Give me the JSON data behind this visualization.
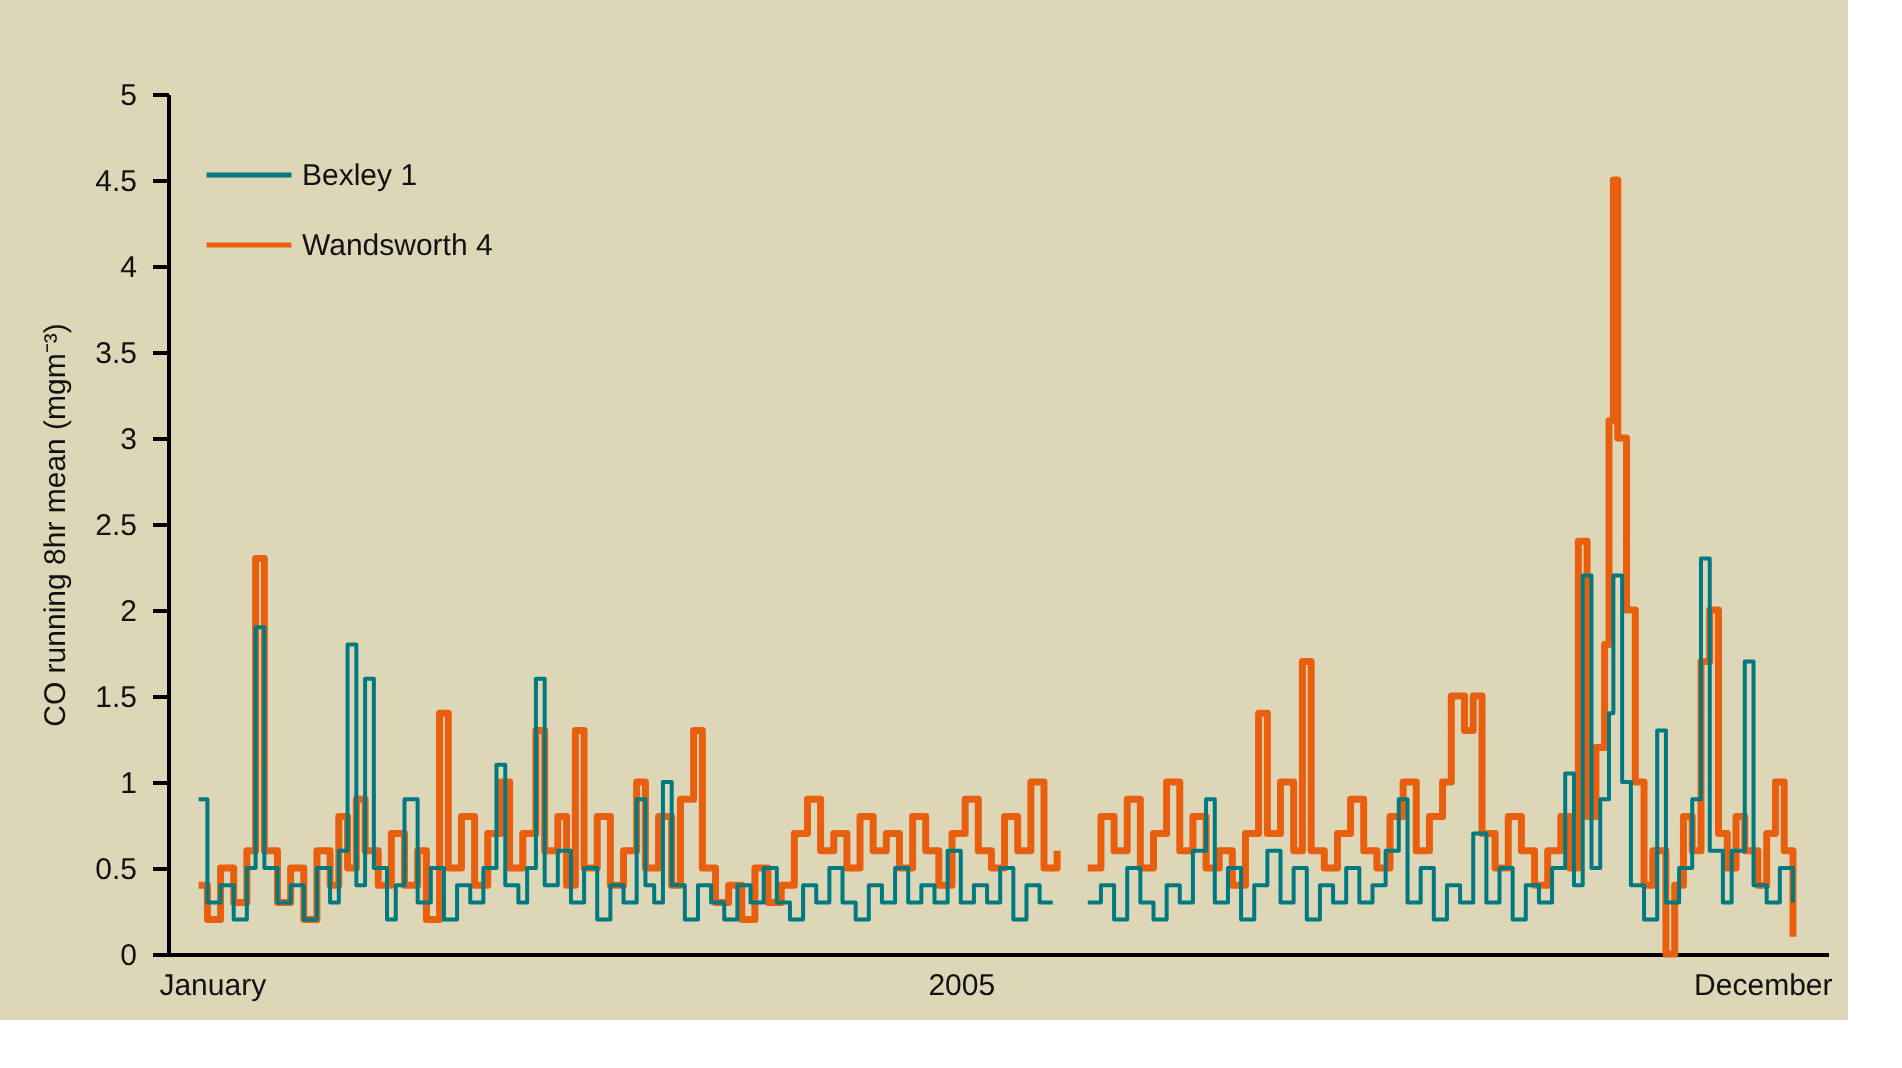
{
  "chart_data": {
    "type": "step",
    "ylabel": "CO running 8hr mean (mgm⁻³)",
    "xlim": [
      "2004-12-25",
      "2006-01-08"
    ],
    "xticks": [
      {
        "value": "2005-01-04",
        "label": "January"
      },
      {
        "value": "2005-06-24",
        "label": "2005"
      },
      {
        "value": "2005-12-24",
        "label": "December"
      }
    ],
    "ylim": [
      0,
      5
    ],
    "yticks": [
      0,
      0.5,
      1,
      1.5,
      2,
      2.5,
      3,
      3.5,
      4,
      4.5,
      5
    ],
    "grid": false,
    "legend": "top left",
    "marker": "none",
    "line_style": "solid",
    "series": [
      {
        "name": "Bexley 1",
        "color": "#007a80",
        "x": [
          "2005-01-01",
          "2005-01-03",
          "2005-01-06",
          "2005-01-09",
          "2005-01-12",
          "2005-01-14",
          "2005-01-16",
          "2005-01-19",
          "2005-01-22",
          "2005-01-25",
          "2005-01-28",
          "2005-01-31",
          "2005-02-02",
          "2005-02-04",
          "2005-02-06",
          "2005-02-08",
          "2005-02-10",
          "2005-02-13",
          "2005-02-15",
          "2005-02-17",
          "2005-02-20",
          "2005-02-23",
          "2005-02-26",
          "2005-03-01",
          "2005-03-04",
          "2005-03-07",
          "2005-03-10",
          "2005-03-12",
          "2005-03-15",
          "2005-03-17",
          "2005-03-19",
          "2005-03-21",
          "2005-03-24",
          "2005-03-27",
          "2005-03-30",
          "2005-04-02",
          "2005-04-05",
          "2005-04-08",
          "2005-04-11",
          "2005-04-13",
          "2005-04-15",
          "2005-04-17",
          "2005-04-19",
          "2005-04-22",
          "2005-04-25",
          "2005-04-28",
          "2005-05-01",
          "2005-05-04",
          "2005-05-07",
          "2005-05-10",
          "2005-05-13",
          "2005-05-16",
          "2005-05-19",
          "2005-05-22",
          "2005-05-25",
          "2005-05-28",
          "2005-05-31",
          "2005-06-03",
          "2005-06-06",
          "2005-06-09",
          "2005-06-12",
          "2005-06-15",
          "2005-06-18",
          "2005-06-21",
          "2005-06-24",
          "2005-06-27",
          "2005-06-30",
          "2005-07-03",
          "2005-07-06",
          "2005-07-09",
          "2005-07-12",
          "2005-07-15",
          "2005-07-18",
          "2005-07-21",
          "2005-07-23",
          "2005-07-26",
          "2005-07-29",
          "2005-08-01",
          "2005-08-04",
          "2005-08-07",
          "2005-08-10",
          "2005-08-13",
          "2005-08-16",
          "2005-08-19",
          "2005-08-21",
          "2005-08-24",
          "2005-08-27",
          "2005-08-30",
          "2005-09-02",
          "2005-09-05",
          "2005-09-08",
          "2005-09-11",
          "2005-09-14",
          "2005-09-17",
          "2005-09-20",
          "2005-09-23",
          "2005-09-26",
          "2005-09-29",
          "2005-10-02",
          "2005-10-04",
          "2005-10-07",
          "2005-10-10",
          "2005-10-13",
          "2005-10-16",
          "2005-10-19",
          "2005-10-22",
          "2005-10-25",
          "2005-10-28",
          "2005-10-31",
          "2005-11-03",
          "2005-11-06",
          "2005-11-09",
          "2005-11-11",
          "2005-11-13",
          "2005-11-15",
          "2005-11-17",
          "2005-11-19",
          "2005-11-20",
          "2005-11-22",
          "2005-11-24",
          "2005-11-27",
          "2005-11-30",
          "2005-12-02",
          "2005-12-05",
          "2005-12-08",
          "2005-12-10",
          "2005-12-12",
          "2005-12-15",
          "2005-12-17",
          "2005-12-20",
          "2005-12-22",
          "2005-12-25",
          "2005-12-28",
          "2005-12-31"
        ],
        "values": [
          0.9,
          0.3,
          0.4,
          0.2,
          0.5,
          1.9,
          0.5,
          0.3,
          0.4,
          0.2,
          0.5,
          0.3,
          0.6,
          1.8,
          0.4,
          1.6,
          0.5,
          0.2,
          0.4,
          0.9,
          0.3,
          0.5,
          0.2,
          0.4,
          0.3,
          0.5,
          1.1,
          0.4,
          0.3,
          0.5,
          1.6,
          0.4,
          0.6,
          0.3,
          0.5,
          0.2,
          0.4,
          0.3,
          0.9,
          0.4,
          0.3,
          1.0,
          0.4,
          0.2,
          0.4,
          0.3,
          0.2,
          0.4,
          0.3,
          0.5,
          0.3,
          0.2,
          0.4,
          0.3,
          0.5,
          0.3,
          0.2,
          0.4,
          0.3,
          0.5,
          0.3,
          0.4,
          0.3,
          0.6,
          0.3,
          0.4,
          0.3,
          0.5,
          0.2,
          0.4,
          0.3,
          0.3,
          null,
          null,
          0.3,
          0.4,
          0.2,
          0.5,
          0.3,
          0.2,
          0.4,
          0.3,
          0.6,
          0.9,
          0.3,
          0.5,
          0.2,
          0.4,
          0.6,
          0.3,
          0.5,
          0.2,
          0.4,
          0.3,
          0.5,
          0.3,
          0.4,
          0.6,
          0.9,
          0.3,
          0.5,
          0.2,
          0.4,
          0.3,
          0.7,
          0.3,
          0.5,
          0.2,
          0.4,
          0.3,
          0.5,
          1.05,
          0.4,
          2.2,
          0.5,
          0.9,
          1.4,
          2.2,
          1.0,
          0.4,
          0.2,
          1.3,
          0.3,
          0.5,
          0.9,
          2.3,
          0.6,
          0.3,
          0.6,
          1.7,
          0.4,
          0.3,
          0.5,
          0.3
        ]
      },
      {
        "name": "Wandsworth 4",
        "color": "#e8600f",
        "x": [
          "2005-01-01",
          "2005-01-03",
          "2005-01-06",
          "2005-01-09",
          "2005-01-12",
          "2005-01-14",
          "2005-01-16",
          "2005-01-19",
          "2005-01-22",
          "2005-01-25",
          "2005-01-28",
          "2005-01-31",
          "2005-02-02",
          "2005-02-04",
          "2005-02-06",
          "2005-02-08",
          "2005-02-11",
          "2005-02-14",
          "2005-02-17",
          "2005-02-20",
          "2005-02-22",
          "2005-02-25",
          "2005-02-27",
          "2005-03-02",
          "2005-03-05",
          "2005-03-08",
          "2005-03-11",
          "2005-03-13",
          "2005-03-16",
          "2005-03-19",
          "2005-03-21",
          "2005-03-24",
          "2005-03-26",
          "2005-03-28",
          "2005-03-30",
          "2005-04-02",
          "2005-04-05",
          "2005-04-08",
          "2005-04-11",
          "2005-04-13",
          "2005-04-16",
          "2005-04-19",
          "2005-04-21",
          "2005-04-24",
          "2005-04-26",
          "2005-04-29",
          "2005-05-02",
          "2005-05-05",
          "2005-05-08",
          "2005-05-11",
          "2005-05-14",
          "2005-05-17",
          "2005-05-20",
          "2005-05-23",
          "2005-05-26",
          "2005-05-29",
          "2005-06-01",
          "2005-06-04",
          "2005-06-07",
          "2005-06-10",
          "2005-06-13",
          "2005-06-16",
          "2005-06-19",
          "2005-06-22",
          "2005-06-25",
          "2005-06-28",
          "2005-07-01",
          "2005-07-04",
          "2005-07-07",
          "2005-07-10",
          "2005-07-13",
          "2005-07-16",
          "2005-07-18",
          "2005-07-21",
          "2005-07-23",
          "2005-07-26",
          "2005-07-29",
          "2005-08-01",
          "2005-08-04",
          "2005-08-07",
          "2005-08-10",
          "2005-08-13",
          "2005-08-16",
          "2005-08-19",
          "2005-08-22",
          "2005-08-25",
          "2005-08-28",
          "2005-08-31",
          "2005-09-02",
          "2005-09-05",
          "2005-09-08",
          "2005-09-10",
          "2005-09-12",
          "2005-09-15",
          "2005-09-18",
          "2005-09-21",
          "2005-09-24",
          "2005-09-27",
          "2005-09-30",
          "2005-10-03",
          "2005-10-06",
          "2005-10-09",
          "2005-10-12",
          "2005-10-14",
          "2005-10-17",
          "2005-10-19",
          "2005-10-21",
          "2005-10-24",
          "2005-10-27",
          "2005-10-30",
          "2005-11-02",
          "2005-11-05",
          "2005-11-08",
          "2005-11-10",
          "2005-11-12",
          "2005-11-14",
          "2005-11-16",
          "2005-11-18",
          "2005-11-19",
          "2005-11-20",
          "2005-11-21",
          "2005-11-23",
          "2005-11-25",
          "2005-11-27",
          "2005-11-29",
          "2005-12-02",
          "2005-12-04",
          "2005-12-06",
          "2005-12-08",
          "2005-12-10",
          "2005-12-12",
          "2005-12-14",
          "2005-12-16",
          "2005-12-18",
          "2005-12-20",
          "2005-12-23",
          "2005-12-25",
          "2005-12-27",
          "2005-12-29",
          "2005-12-31"
        ],
        "values": [
          0.4,
          0.2,
          0.5,
          0.3,
          0.6,
          2.3,
          0.6,
          0.3,
          0.5,
          0.2,
          0.6,
          0.4,
          0.8,
          0.5,
          0.9,
          0.6,
          0.4,
          0.7,
          0.4,
          0.6,
          0.2,
          1.4,
          0.5,
          0.8,
          0.4,
          0.7,
          1.0,
          0.5,
          0.7,
          1.3,
          0.6,
          0.8,
          0.4,
          1.3,
          0.5,
          0.8,
          0.4,
          0.6,
          1.0,
          0.5,
          0.8,
          0.4,
          0.9,
          1.3,
          0.5,
          0.3,
          0.4,
          0.2,
          0.5,
          0.3,
          0.4,
          0.7,
          0.9,
          0.6,
          0.7,
          0.5,
          0.8,
          0.6,
          0.7,
          0.5,
          0.8,
          0.6,
          0.4,
          0.7,
          0.9,
          0.6,
          0.5,
          0.8,
          0.6,
          1.0,
          0.5,
          0.6,
          null,
          null,
          0.5,
          0.8,
          0.6,
          0.9,
          0.5,
          0.7,
          1.0,
          0.6,
          0.8,
          0.5,
          0.6,
          0.4,
          0.7,
          1.4,
          0.7,
          1.0,
          0.6,
          1.7,
          0.6,
          0.5,
          0.7,
          0.9,
          0.6,
          0.5,
          0.8,
          1.0,
          0.6,
          0.8,
          1.0,
          1.5,
          1.3,
          1.5,
          0.7,
          0.5,
          0.8,
          0.6,
          0.4,
          0.6,
          0.8,
          0.5,
          2.4,
          0.8,
          1.2,
          1.8,
          3.1,
          4.5,
          3.0,
          2.0,
          1.0,
          0.4,
          0.6,
          0.0,
          0.4,
          0.8,
          0.6,
          1.7,
          2.0,
          0.7,
          0.5,
          0.8,
          0.6,
          0.4,
          0.7,
          1.0,
          0.6,
          0.1
        ]
      }
    ]
  }
}
